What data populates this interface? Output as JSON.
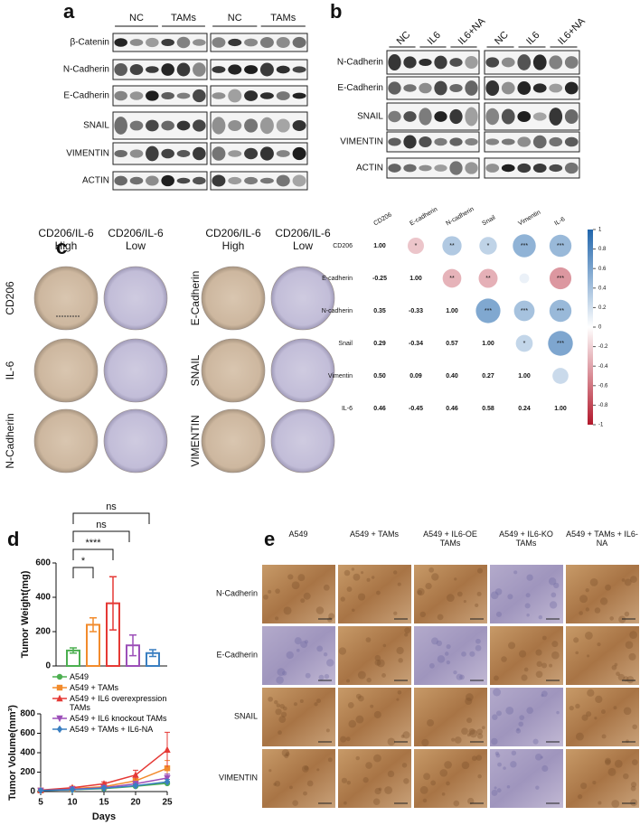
{
  "panel_a": {
    "label": "a",
    "groups": [
      "NC",
      "TAMs",
      "NC",
      "TAMs"
    ],
    "rows": [
      "β-Catenin",
      "N-Cadherin",
      "E-Cadherin",
      "SNAIL",
      "VIMENTIN",
      "ACTIN"
    ]
  },
  "panel_b": {
    "label": "b",
    "groups": [
      "NC",
      "IL6",
      "IL6+NA",
      "NC",
      "IL6",
      "IL6+NA"
    ],
    "rows": [
      "N-Cadherin",
      "E-Cadherin",
      "SNAIL",
      "VIMENTIN",
      "ACTIN"
    ]
  },
  "panel_c": {
    "label": "c",
    "columns": [
      "CD206/IL-6 High",
      "CD206/IL-6 Low",
      "CD206/IL-6 High",
      "CD206/IL-6 Low"
    ],
    "rows_left": [
      "CD206",
      "IL-6",
      "N-Cadherin"
    ],
    "rows_right": [
      "E-Cadherin",
      "SNAIL",
      "VIMENTIN"
    ]
  },
  "panel_d": {
    "label": "d"
  },
  "panel_e": {
    "label": "e",
    "columns": [
      "A549",
      "A549 + TAMs",
      "A549 + IL6-OE TAMs",
      "A549 + IL6-KO TAMs",
      "A549 + TAMs + IL6-NA"
    ],
    "rows": [
      "N-Cadherin",
      "E-Cadherin",
      "SNAIL",
      "VIMENTIN"
    ]
  },
  "chart_data": [
    {
      "type": "corrplot",
      "categories": [
        "CD206",
        "E-cadherin",
        "N-cadherin",
        "Snail",
        "Vimentin",
        "IL-6"
      ],
      "values": [
        [
          1
        ],
        [
          -0.25,
          1
        ],
        [
          0.35,
          -0.33,
          1
        ],
        [
          0.29,
          -0.34,
          0.57,
          1
        ],
        [
          0.5,
          0.09,
          0.4,
          0.27,
          1
        ],
        [
          0.46,
          -0.45,
          0.46,
          0.58,
          0.24,
          1
        ]
      ],
      "value_labels": [
        [
          "1.00"
        ],
        [
          "-0.25",
          "1.00"
        ],
        [
          "0.35",
          "-0.33",
          "1.00"
        ],
        [
          "0.29",
          "-0.34",
          "0.57",
          "1.00"
        ],
        [
          "0.50",
          "0.09",
          "0.40",
          "0.27",
          "1.00"
        ],
        [
          "0.46",
          "-0.45",
          "0.46",
          "0.58",
          "0.24",
          "1.00"
        ]
      ],
      "significance": [
        [
          "*",
          "**",
          "*",
          "***",
          "***"
        ],
        [
          "**",
          "**",
          null,
          "***"
        ],
        [
          "***",
          "***",
          "***"
        ],
        [
          "*",
          "***"
        ],
        [
          null
        ]
      ],
      "clim": [
        -1,
        1
      ],
      "cticks": [
        1,
        0.8,
        0.6,
        0.4,
        0.2,
        0,
        -0.2,
        -0.4,
        -0.6,
        -0.8,
        -1
      ],
      "positive_color": "#2166ac",
      "negative_color": "#b2182b"
    },
    {
      "type": "bar",
      "ylabel": "Tumor Weight(mg)",
      "categories": [
        null,
        null,
        null,
        null,
        null
      ],
      "values": [
        90,
        240,
        365,
        120,
        75
      ],
      "errors": [
        15,
        40,
        155,
        60,
        20
      ],
      "colors": [
        "#4caf50",
        "#f28b2c",
        "#e53935",
        "#9c4fb8",
        "#3a7fc1"
      ],
      "ylim": [
        0,
        600
      ],
      "yticks": [
        0,
        200,
        400,
        600
      ],
      "comparisons": [
        "*",
        "****",
        "ns",
        "ns"
      ]
    },
    {
      "type": "line",
      "xlabel": "Days",
      "ylabel": "Tumor Volume(mm³)",
      "x": [
        5,
        10,
        15,
        20,
        25
      ],
      "xlim": [
        5,
        25
      ],
      "xticks": [
        5,
        10,
        15,
        20,
        25
      ],
      "ylim": [
        0,
        800
      ],
      "yticks": [
        0,
        200,
        400,
        600,
        800
      ],
      "series": [
        {
          "name": "A549",
          "color": "#4caf50",
          "marker": "circle",
          "values": [
            10,
            20,
            30,
            55,
            85
          ],
          "errors": [
            4,
            6,
            8,
            15,
            20
          ]
        },
        {
          "name": "A549 + TAMs",
          "color": "#f28b2c",
          "marker": "square",
          "values": [
            12,
            30,
            50,
            110,
            240
          ],
          "errors": [
            5,
            10,
            15,
            40,
            80
          ]
        },
        {
          "name": "A549 + IL6 overexpression TAMs",
          "color": "#e53935",
          "marker": "triangle",
          "values": [
            15,
            40,
            80,
            170,
            430
          ],
          "errors": [
            5,
            10,
            20,
            50,
            180
          ]
        },
        {
          "name": "A549 + IL6 knockout TAMs",
          "color": "#9c4fb8",
          "marker": "triangle-down",
          "values": [
            10,
            25,
            40,
            80,
            140
          ],
          "errors": [
            4,
            8,
            10,
            25,
            40
          ]
        },
        {
          "name": "A549 + TAMs + IL6-NA",
          "color": "#3a7fc1",
          "marker": "diamond",
          "values": [
            10,
            20,
            35,
            60,
            100
          ],
          "errors": [
            4,
            6,
            10,
            15,
            25
          ]
        }
      ]
    }
  ]
}
